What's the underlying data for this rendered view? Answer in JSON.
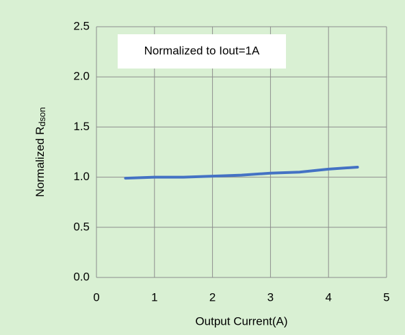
{
  "chart_data": {
    "type": "line",
    "xlabel": "Output Current(A)",
    "ylabel": [
      "Normalized R",
      "dson"
    ],
    "annotation": "Normalized to Iout=1A",
    "x": [
      0.5,
      1,
      1.5,
      2,
      2.5,
      3,
      3.5,
      4,
      4.5
    ],
    "series": [
      {
        "name": "Rdson",
        "color": "#4472c4",
        "values": [
          0.99,
          1.0,
          1.0,
          1.01,
          1.02,
          1.04,
          1.05,
          1.08,
          1.1
        ]
      }
    ],
    "xlim": [
      0,
      5
    ],
    "xticks": [
      0,
      1,
      2,
      3,
      4,
      5
    ],
    "ylim": [
      0,
      2.5
    ],
    "yticks": [
      {
        "value": 0,
        "label": "0.0"
      },
      {
        "value": 0.5,
        "label": "0.5"
      },
      {
        "value": 1,
        "label": "1.0"
      },
      {
        "value": 1.5,
        "label": "1.5"
      },
      {
        "value": 2,
        "label": "2.0"
      },
      {
        "value": 2.5,
        "label": "2.5"
      }
    ],
    "grid": true
  }
}
